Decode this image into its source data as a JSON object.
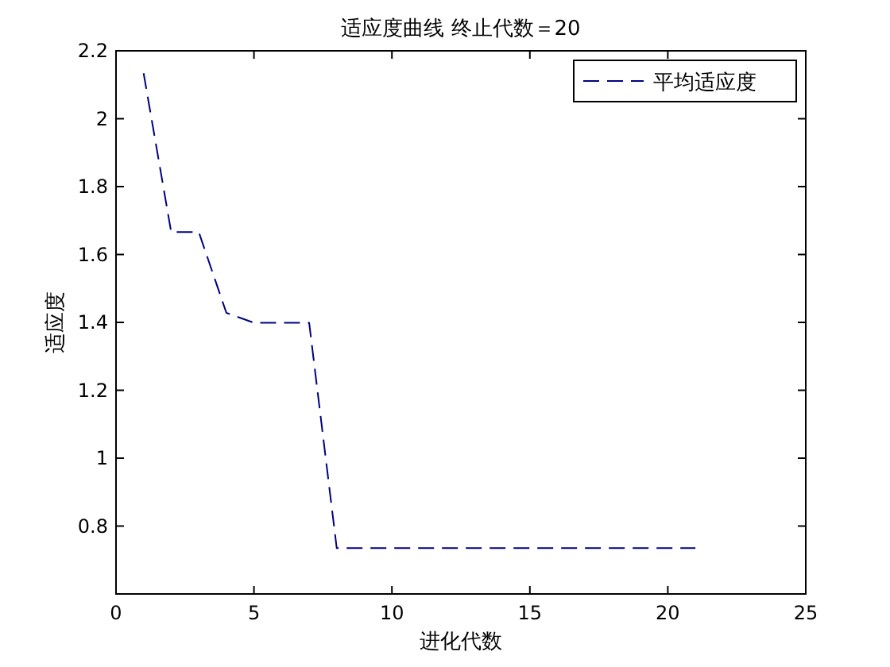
{
  "chart_data": {
    "type": "line",
    "title": "适应度曲线 终止代数＝20",
    "xlabel": "进化代数",
    "ylabel": "适应度",
    "x": [
      1,
      2,
      3,
      4,
      5,
      6,
      7,
      8,
      9,
      10,
      11,
      12,
      13,
      14,
      15,
      16,
      17,
      18,
      19,
      20,
      21
    ],
    "series": [
      {
        "name": "平均适应度",
        "color": "#000080",
        "line_style": "dashed",
        "values": [
          2.134,
          1.666,
          1.666,
          1.428,
          1.399,
          1.399,
          1.399,
          0.735,
          0.735,
          0.735,
          0.735,
          0.735,
          0.735,
          0.735,
          0.735,
          0.735,
          0.735,
          0.735,
          0.735,
          0.735,
          0.735
        ]
      }
    ],
    "xlim": [
      0,
      25
    ],
    "xticks": [
      0,
      5,
      10,
      15,
      20,
      25
    ],
    "ylim": [
      0.6,
      2.2
    ],
    "yticks": [
      0.8,
      1,
      1.2,
      1.4,
      1.6,
      1.8,
      2,
      2.2
    ],
    "legend": "top right",
    "grid": false,
    "marker": "none"
  }
}
